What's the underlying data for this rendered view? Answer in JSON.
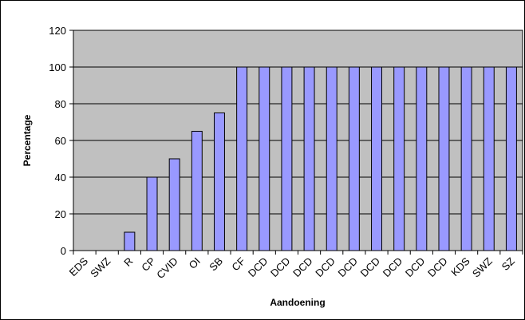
{
  "chart_data": {
    "type": "bar",
    "title": "",
    "xlabel": "Aandoening",
    "ylabel": "Percentage",
    "ylim": [
      0,
      120
    ],
    "yticks": [
      "0",
      "20",
      "40",
      "60",
      "80",
      "100",
      "120"
    ],
    "grid": true,
    "legend": "none",
    "categories": [
      "EDS",
      "SWZ",
      "R",
      "CP",
      "CVID",
      "OI",
      "SB",
      "CF",
      "DCD",
      "DCD",
      "DCD",
      "DCD",
      "DCD",
      "DCD",
      "DCD",
      "DCD",
      "DCD",
      "KDS",
      "SWZ",
      "SZ"
    ],
    "values": [
      0,
      0,
      10,
      40,
      50,
      65,
      75,
      100,
      100,
      100,
      100,
      100,
      100,
      100,
      100,
      100,
      100,
      100,
      100,
      100
    ]
  },
  "colors": {
    "plot_background": "#c0c0c0",
    "bar_fill": "#9999ff",
    "bar_stroke": "#000000",
    "gridline": "#000000",
    "frame": "#000000"
  }
}
